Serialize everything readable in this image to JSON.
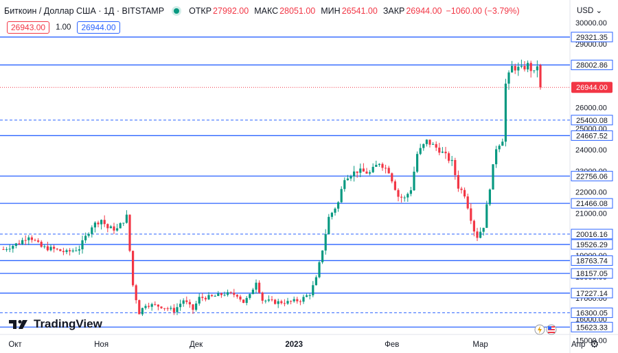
{
  "header": {
    "symbol": "Биткоин / Доллар США · 1Д · BITSTAMP",
    "open_label": "ОТКР",
    "open_value": "27992.00",
    "high_label": "МАКС",
    "high_value": "28051.00",
    "low_label": "МИН",
    "low_value": "26541.00",
    "close_label": "ЗАКР",
    "close_value": "26944.00",
    "change_value": "−1060.00 (−3.79%)",
    "live_color": "#089981"
  },
  "quote": {
    "sell": "26943.00",
    "spread": "1.00",
    "buy": "26944.00"
  },
  "currency": "USD",
  "logo_text": "TradingView",
  "colors": {
    "up": "#089981",
    "down": "#f23645",
    "level_line": "#2962ff",
    "last_price": "#f23645"
  },
  "icons": [
    "chevron-down-icon",
    "lightning-icon",
    "us-flag-icon",
    "gear-icon",
    "tradingview-logo-icon"
  ],
  "chart_data": {
    "type": "candlestick",
    "price_axis_ticks": [
      30000,
      29000,
      28000,
      27000,
      26000,
      25000,
      24000,
      23000,
      22000,
      21000,
      20000,
      19000,
      18000,
      17000,
      16000,
      15000
    ],
    "time_axis_labels": [
      "Окт",
      "Ноя",
      "Дек",
      "2023",
      "Фев",
      "Мар",
      "Апр"
    ],
    "last_price": "26944.00",
    "horizontal_levels": [
      {
        "value": "29321.35",
        "style": "solid"
      },
      {
        "value": "28002.86",
        "style": "solid"
      },
      {
        "value": "25400.08",
        "style": "dashed"
      },
      {
        "value": "24667.52",
        "style": "solid"
      },
      {
        "value": "22756.06",
        "style": "solid"
      },
      {
        "value": "21466.08",
        "style": "solid"
      },
      {
        "value": "20016.16",
        "style": "dashed"
      },
      {
        "value": "19526.29",
        "style": "solid"
      },
      {
        "value": "18763.74",
        "style": "solid"
      },
      {
        "value": "18157.05",
        "style": "solid"
      },
      {
        "value": "17227.14",
        "style": "solid"
      },
      {
        "value": "16300.05",
        "style": "dashed"
      },
      {
        "value": "15623.33",
        "style": "solid"
      }
    ],
    "ylim": [
      14600,
      31000
    ],
    "x_range_days": [
      0,
      188
    ],
    "month_starts_day": {
      "Окт": 0,
      "Ноя": 31,
      "Дек": 61,
      "2023": 92,
      "Фев": 123,
      "Мар": 151,
      "Апр": 182
    },
    "close_path": [
      [
        0,
        19300
      ],
      [
        5,
        19600
      ],
      [
        8,
        19950
      ],
      [
        12,
        19400
      ],
      [
        16,
        19300
      ],
      [
        20,
        19150
      ],
      [
        24,
        19350
      ],
      [
        28,
        20400
      ],
      [
        31,
        20700
      ],
      [
        33,
        20300
      ],
      [
        36,
        20250
      ],
      [
        39,
        20850
      ],
      [
        41,
        17600
      ],
      [
        43,
        16300
      ],
      [
        45,
        16700
      ],
      [
        50,
        16600
      ],
      [
        54,
        16400
      ],
      [
        57,
        16900
      ],
      [
        60,
        16450
      ],
      [
        62,
        17000
      ],
      [
        66,
        17050
      ],
      [
        70,
        17200
      ],
      [
        74,
        17150
      ],
      [
        76,
        16800
      ],
      [
        78,
        17100
      ],
      [
        80,
        17800
      ],
      [
        82,
        16900
      ],
      [
        86,
        16800
      ],
      [
        90,
        16800
      ],
      [
        94,
        16900
      ],
      [
        97,
        17200
      ],
      [
        99,
        17900
      ],
      [
        101,
        19300
      ],
      [
        103,
        20800
      ],
      [
        106,
        21500
      ],
      [
        108,
        22700
      ],
      [
        112,
        23000
      ],
      [
        116,
        22900
      ],
      [
        119,
        23400
      ],
      [
        122,
        23000
      ],
      [
        125,
        21800
      ],
      [
        127,
        21700
      ],
      [
        129,
        22150
      ],
      [
        131,
        23800
      ],
      [
        134,
        24400
      ],
      [
        136,
        24200
      ],
      [
        138,
        24000
      ],
      [
        140,
        23700
      ],
      [
        142,
        23400
      ],
      [
        144,
        22250
      ],
      [
        146,
        21900
      ],
      [
        149,
        20200
      ],
      [
        150,
        19900
      ],
      [
        152,
        20400
      ],
      [
        154,
        22250
      ],
      [
        156,
        24100
      ],
      [
        158,
        24500
      ],
      [
        159,
        27100
      ],
      [
        161,
        27900
      ],
      [
        164,
        27800
      ],
      [
        166,
        28000
      ],
      [
        168,
        27600
      ],
      [
        169,
        28000
      ],
      [
        170,
        26944
      ]
    ]
  }
}
